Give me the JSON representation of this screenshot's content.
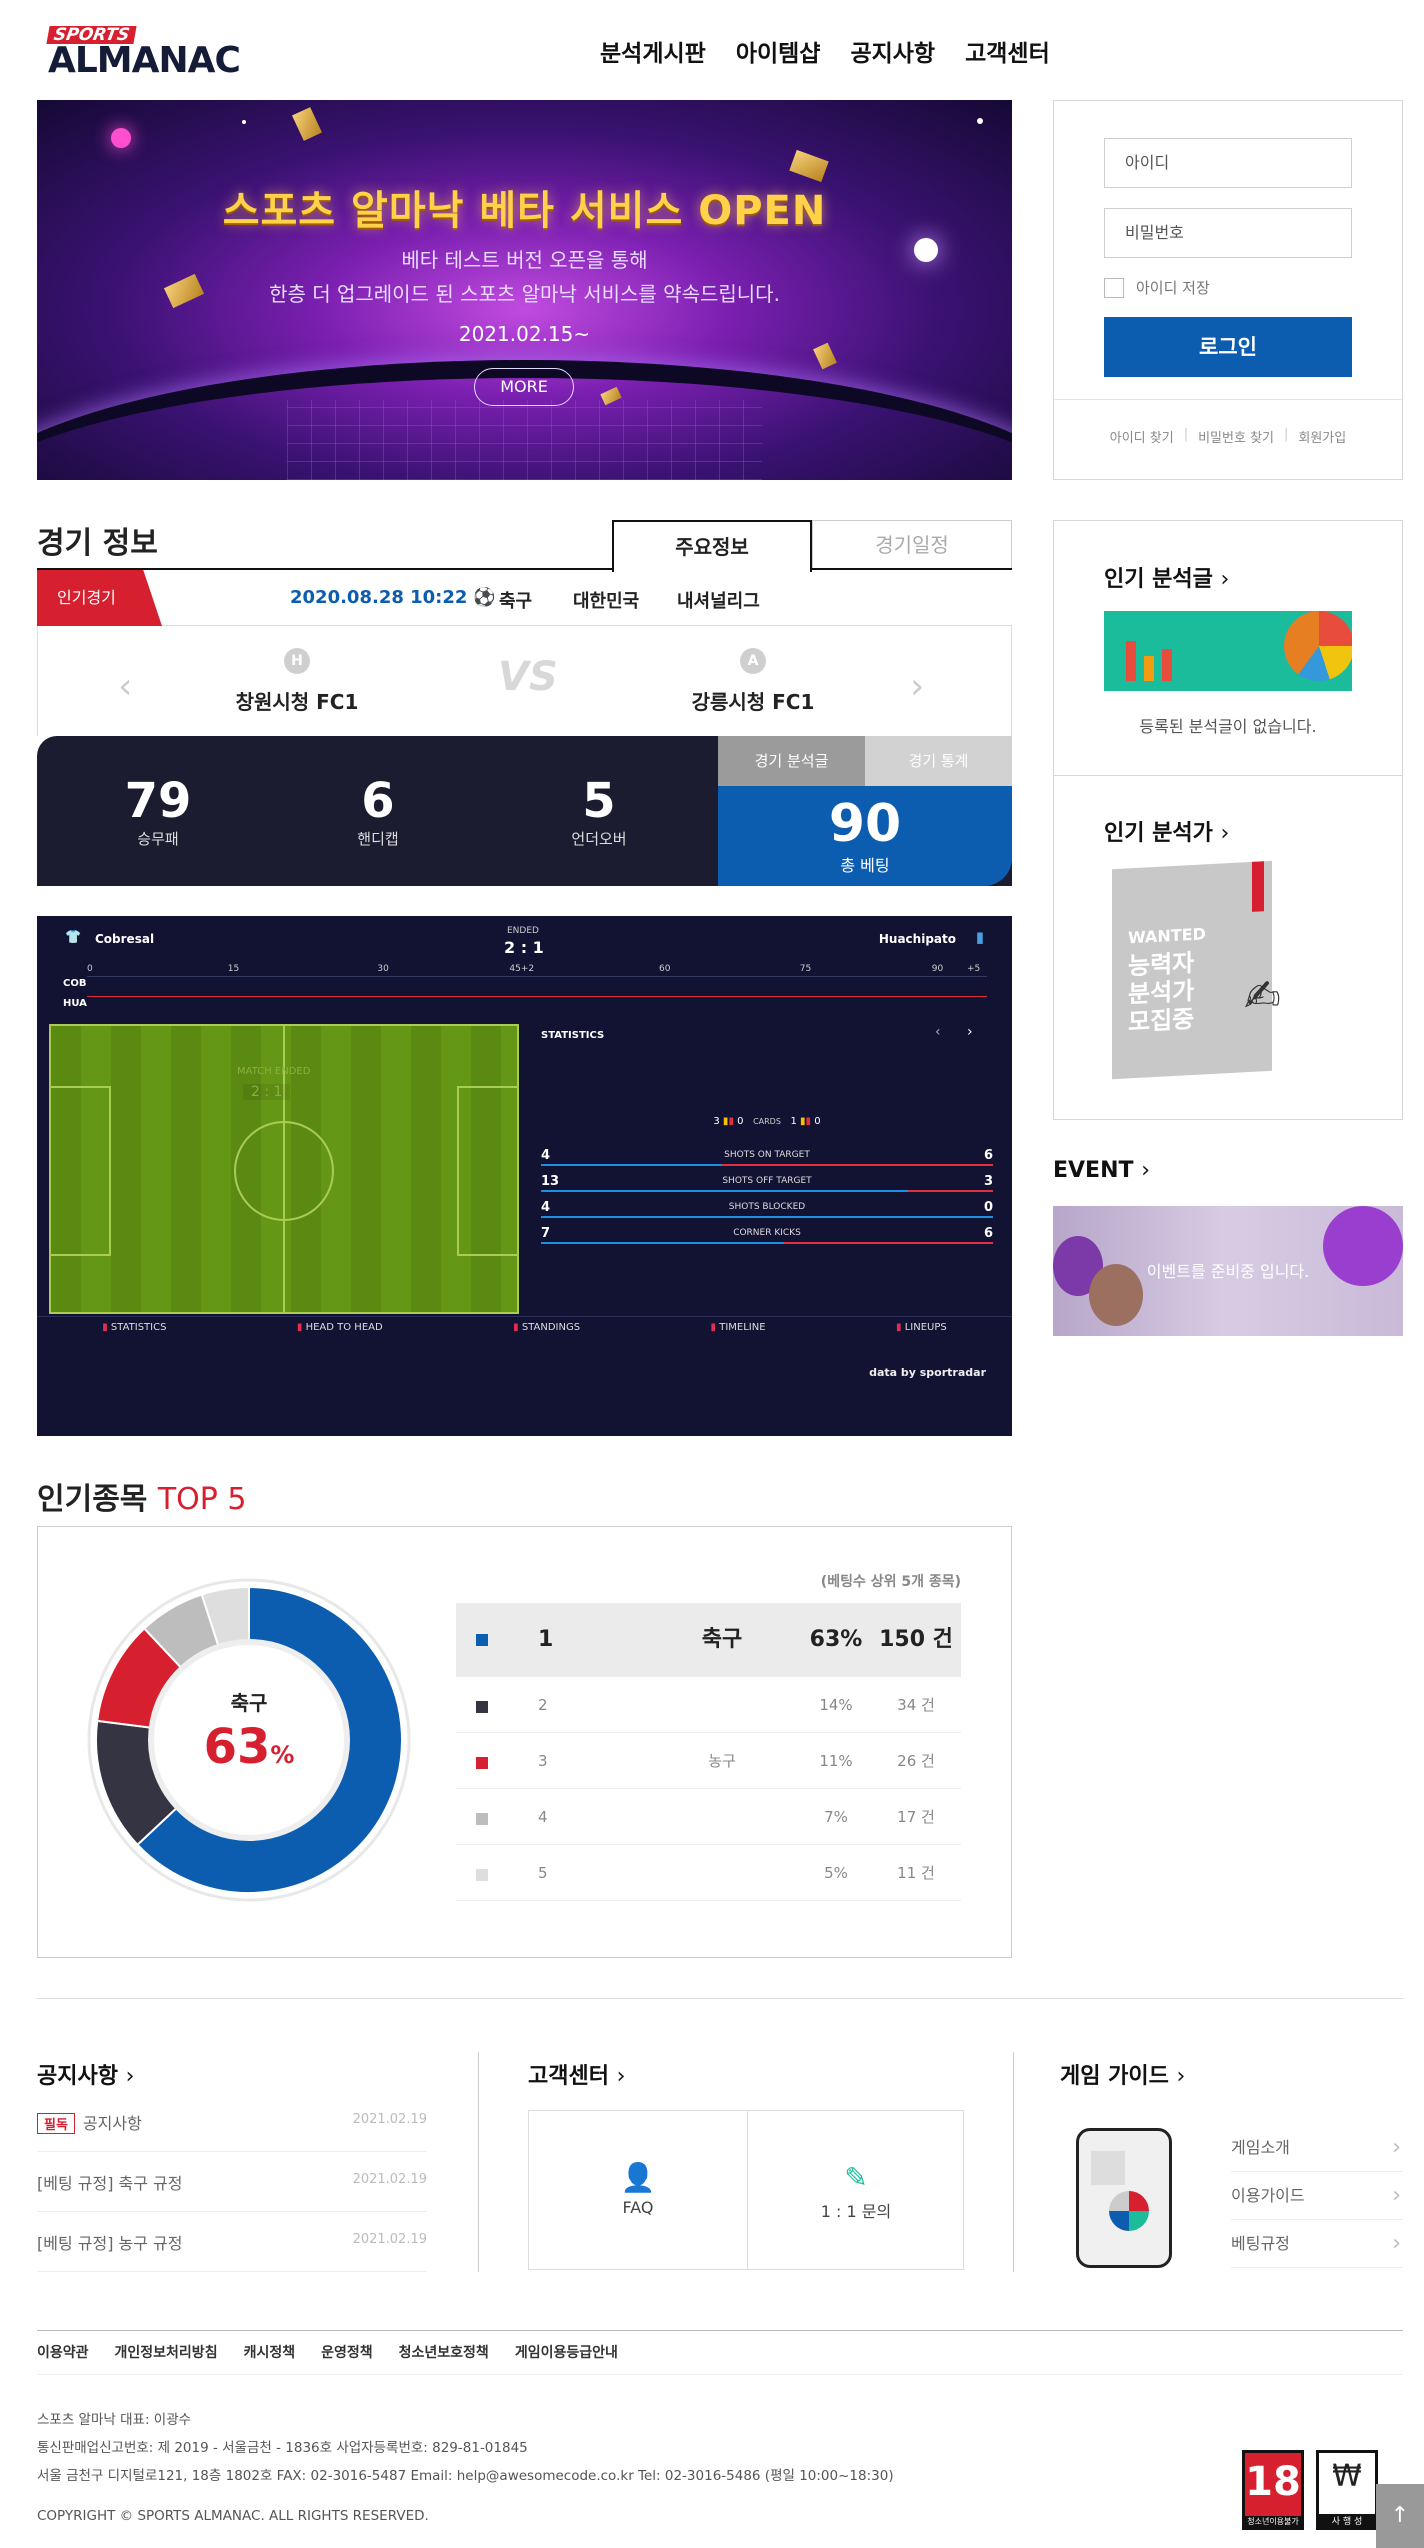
{
  "header": {
    "logo_top": "SPORTS",
    "logo_main": "ALMANAC",
    "nav": [
      "분석게시판",
      "아이템샵",
      "공지사항",
      "고객센터"
    ]
  },
  "banner": {
    "title": "스포츠 알마낙 베타 서비스 OPEN",
    "line1": "베타 테스트 버전 오픈을 통해",
    "line2": "한층 더 업그레이드 된 스포츠 알마낙 서비스를 약속드립니다.",
    "date": "2021.02.15~",
    "more": "MORE"
  },
  "login": {
    "id_placeholder": "아이디",
    "pw_placeholder": "비밀번호",
    "save_id": "아이디 저장",
    "button": "로그인",
    "links": [
      "아이디 찾기",
      "비밀번호 찾기",
      "회원가입"
    ]
  },
  "game": {
    "title": "경기 정보",
    "tabs": [
      "주요정보",
      "경기일정"
    ],
    "hot_label": "인기경기",
    "datetime": "2020.08.28 10:22",
    "sport": "축구",
    "country": "대한민국",
    "league": "내셔널리그",
    "home_badge": "H",
    "away_badge": "A",
    "home": "창원시청 FC1",
    "away": "강릉시청 FC1",
    "vs": "VS",
    "stats": [
      {
        "value": "79",
        "label": "승무패"
      },
      {
        "value": "6",
        "label": "핸디캡"
      },
      {
        "value": "5",
        "label": "언더오버"
      }
    ],
    "btn_analysis": "경기 분석글",
    "btn_stats": "경기 통계",
    "total_bet": "90",
    "total_bet_label": "총 베팅"
  },
  "widget": {
    "home_team": "Cobresal",
    "away_team": "Huachipato",
    "status": "ENDED",
    "score": "2 : 1",
    "home_abbr": "COB",
    "away_abbr": "HUA",
    "timeline_ticks": [
      "0",
      "15",
      "30",
      "45+2",
      "60",
      "75",
      "90",
      "+5"
    ],
    "stats_title": "STATISTICS",
    "match_ended": "MATCH ENDED",
    "cards": {
      "home_yellow": "3",
      "home_red": "0",
      "label": "CARDS",
      "away_yellow": "1",
      "away_red": "0"
    },
    "rows": [
      {
        "home": "4",
        "label": "SHOTS ON TARGET",
        "away": "6"
      },
      {
        "home": "13",
        "label": "SHOTS OFF TARGET",
        "away": "3"
      },
      {
        "home": "4",
        "label": "SHOTS BLOCKED",
        "away": "0"
      },
      {
        "home": "7",
        "label": "CORNER KICKS",
        "away": "6"
      }
    ],
    "tabs": [
      "STATISTICS",
      "HEAD TO HEAD",
      "STANDINGS",
      "TIMELINE",
      "LINEUPS"
    ],
    "credit": "data by sportradar"
  },
  "top5": {
    "title": "인기종목",
    "title_highlight": "TOP 5",
    "note": "(베팅수 상위 5개 종목)",
    "center_label": "축구",
    "center_value": "63",
    "center_unit": "%",
    "rows": [
      {
        "rank": "1",
        "name": "축구",
        "pct": "63%",
        "count": "150 건",
        "color": "#0c5db0"
      },
      {
        "rank": "2",
        "name": "",
        "pct": "14%",
        "count": "34 건",
        "color": "#343442"
      },
      {
        "rank": "3",
        "name": "농구",
        "pct": "11%",
        "count": "26 건",
        "color": "#d62030"
      },
      {
        "rank": "4",
        "name": "",
        "pct": "7%",
        "count": "17 건",
        "color": "#bdbdbd"
      },
      {
        "rank": "5",
        "name": "",
        "pct": "5%",
        "count": "11 건",
        "color": "#dedede"
      }
    ]
  },
  "side": {
    "popular_posts": "인기 분석글",
    "no_posts": "등록된 분석글이 없습니다.",
    "popular_analysts": "인기 분석가",
    "wanted_en": "WANTED",
    "wanted_ko": "능력자 분석가 모집중",
    "event": "EVENT",
    "event_text": "이벤트를 준비중 입니다."
  },
  "footer": {
    "notice_title": "공지사항",
    "notices": [
      {
        "badge": "필독",
        "text": "공지사항",
        "date": "2021.02.19"
      },
      {
        "badge": "",
        "text": "[베팅 규정] 축구 규정",
        "date": "2021.02.19"
      },
      {
        "badge": "",
        "text": "[베팅 규정] 농구 규정",
        "date": "2021.02.19"
      }
    ],
    "cs_title": "고객센터",
    "faq": "FAQ",
    "qna": "1 : 1 문의",
    "guide_title": "게임 가이드",
    "guides": [
      "게임소개",
      "이용가이드",
      "베팅규정"
    ],
    "links": [
      "이용약관",
      "개인정보처리방침",
      "캐시정책",
      "운영정책",
      "청소년보호정책",
      "게임이용등급안내"
    ],
    "info1": "스포츠 알마낙  대표: 이광수",
    "info2": "통신판매업신고번호: 제 2019 - 서울금천 - 1836호 사업자등록번호: 829-81-01845",
    "info3": "서울 금천구 디지털로121, 18층 1802호  FAX: 02-3016-5487  Email: help@awesomecode.co.kr  Tel: 02-3016-5486 (평일 10:00~18:30)",
    "copyright": "COPYRIGHT © SPORTS ALMANAC. ALL RIGHTS RESERVED.",
    "age_label": "청소년이용불가",
    "age_num": "18",
    "age2_label": "사 행 성",
    "top": "↑"
  }
}
